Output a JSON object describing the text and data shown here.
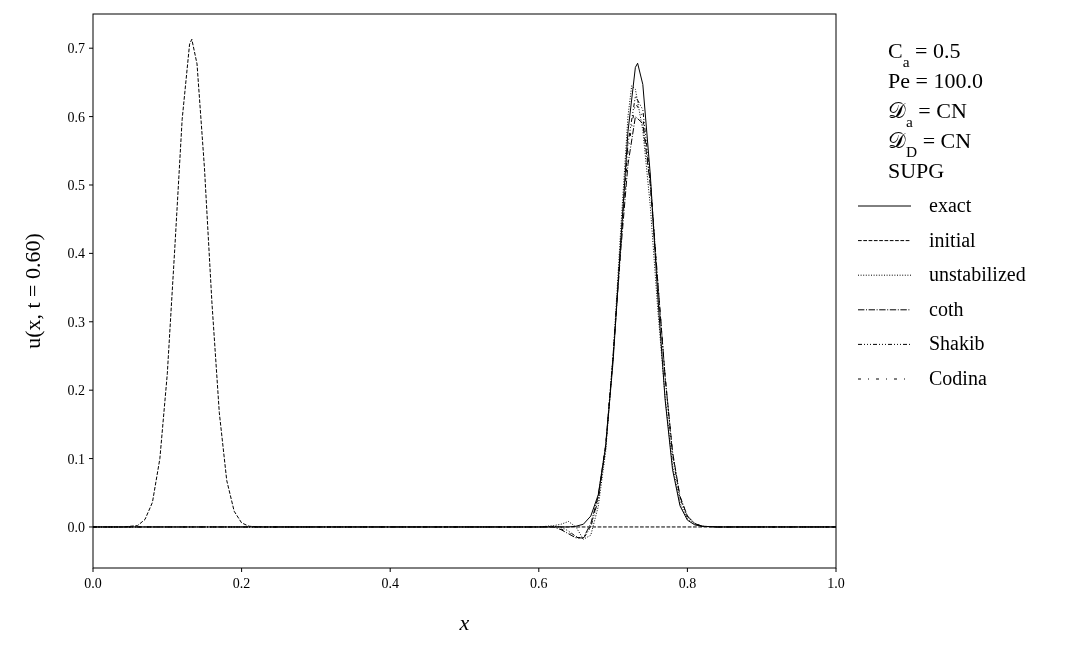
{
  "chart_data": {
    "type": "line",
    "xlabel": "x",
    "ylabel": "u(x, t = 0.60)",
    "xlim": [
      0,
      1
    ],
    "ylim": [
      -0.06,
      0.75
    ],
    "xticks": [
      {
        "value": 0,
        "label": "0.0"
      },
      {
        "value": 0.2,
        "label": "0.2"
      },
      {
        "value": 0.4,
        "label": "0.4"
      },
      {
        "value": 0.6,
        "label": "0.6"
      },
      {
        "value": 0.8,
        "label": "0.8"
      },
      {
        "value": 1,
        "label": "1.0"
      }
    ],
    "yticks": [
      {
        "value": 0,
        "label": "0.0"
      },
      {
        "value": 0.1,
        "label": "0.1"
      },
      {
        "value": 0.2,
        "label": "0.2"
      },
      {
        "value": 0.3,
        "label": "0.3"
      },
      {
        "value": 0.4,
        "label": "0.4"
      },
      {
        "value": 0.5,
        "label": "0.5"
      },
      {
        "value": 0.6,
        "label": "0.6"
      },
      {
        "value": 0.7,
        "label": "0.7"
      }
    ],
    "grid": false,
    "legend": "right",
    "marker": "none",
    "annotations": [
      "C$_{a}$ = 0.5",
      "Pe = 100.0",
      "𝒟$_{a}$ = CN",
      "𝒟$_{D}$ = CN",
      "SUPG"
    ],
    "series": [
      {
        "name": "exact",
        "color": "#000000",
        "line_style": "solid",
        "x": [
          0,
          0.6,
          0.64,
          0.65,
          0.66,
          0.67,
          0.68,
          0.69,
          0.7,
          0.71,
          0.72,
          0.73,
          0.733,
          0.74,
          0.75,
          0.76,
          0.77,
          0.78,
          0.79,
          0.8,
          0.81,
          0.82,
          0.84,
          1
        ],
        "values": [
          0,
          0,
          0,
          0.001,
          0.004,
          0.016,
          0.047,
          0.118,
          0.242,
          0.411,
          0.578,
          0.672,
          0.678,
          0.647,
          0.516,
          0.34,
          0.186,
          0.084,
          0.031,
          0.01,
          0.003,
          0.001,
          0,
          0
        ]
      },
      {
        "name": "initial",
        "color": "#000000",
        "line_style": "dashed",
        "x": [
          0,
          0.04,
          0.06,
          0.07,
          0.08,
          0.09,
          0.1,
          0.11,
          0.12,
          0.13,
          0.133,
          0.14,
          0.15,
          0.16,
          0.17,
          0.18,
          0.19,
          0.2,
          0.21,
          0.23,
          1
        ],
        "values": [
          0,
          0,
          0.002,
          0.011,
          0.036,
          0.1,
          0.224,
          0.406,
          0.596,
          0.706,
          0.713,
          0.677,
          0.525,
          0.329,
          0.167,
          0.068,
          0.023,
          0.006,
          0.001,
          0,
          0
        ]
      },
      {
        "name": "unstabilized",
        "color": "#000000",
        "line_style": "dotted",
        "x": [
          0,
          0.6,
          0.62,
          0.63,
          0.64,
          0.65,
          0.66,
          0.67,
          0.68,
          0.69,
          0.7,
          0.71,
          0.72,
          0.725,
          0.73,
          0.74,
          0.75,
          0.76,
          0.77,
          0.78,
          0.79,
          0.8,
          0.81,
          0.82,
          0.84,
          1
        ],
        "values": [
          0,
          0,
          0.002,
          0.004,
          0.008,
          0,
          -0.018,
          -0.012,
          0.03,
          0.11,
          0.25,
          0.43,
          0.6,
          0.645,
          0.64,
          0.58,
          0.47,
          0.32,
          0.19,
          0.09,
          0.035,
          0.012,
          0.004,
          0.001,
          0,
          0
        ]
      },
      {
        "name": "coth",
        "color": "#000000",
        "line_style": "dashdot",
        "x": [
          0,
          0.6,
          0.62,
          0.63,
          0.64,
          0.65,
          0.66,
          0.67,
          0.68,
          0.69,
          0.7,
          0.71,
          0.72,
          0.73,
          0.74,
          0.75,
          0.76,
          0.77,
          0.78,
          0.79,
          0.8,
          0.81,
          0.82,
          0.84,
          1
        ],
        "values": [
          0,
          0,
          0,
          -0.004,
          -0.01,
          -0.016,
          -0.016,
          0.005,
          0.045,
          0.12,
          0.25,
          0.4,
          0.53,
          0.6,
          0.59,
          0.5,
          0.36,
          0.22,
          0.11,
          0.045,
          0.016,
          0.005,
          0.001,
          0,
          0
        ]
      },
      {
        "name": "Shakib",
        "color": "#000000",
        "line_style": "dashdotdot",
        "x": [
          0,
          0.6,
          0.62,
          0.63,
          0.64,
          0.65,
          0.66,
          0.67,
          0.68,
          0.69,
          0.7,
          0.71,
          0.72,
          0.73,
          0.74,
          0.75,
          0.76,
          0.77,
          0.78,
          0.79,
          0.8,
          0.81,
          0.82,
          0.84,
          1
        ],
        "values": [
          0,
          0,
          0.001,
          0,
          -0.006,
          -0.014,
          -0.017,
          0.0,
          0.04,
          0.115,
          0.25,
          0.41,
          0.56,
          0.63,
          0.61,
          0.51,
          0.36,
          0.22,
          0.105,
          0.042,
          0.015,
          0.005,
          0.001,
          0,
          0
        ]
      },
      {
        "name": "Codina",
        "color": "#000000",
        "line_style": "loosedashdot",
        "x": [
          0,
          0.6,
          0.62,
          0.63,
          0.64,
          0.65,
          0.66,
          0.67,
          0.68,
          0.69,
          0.7,
          0.71,
          0.72,
          0.73,
          0.74,
          0.75,
          0.76,
          0.77,
          0.78,
          0.79,
          0.8,
          0.81,
          0.82,
          0.84,
          1
        ],
        "values": [
          0,
          0,
          0,
          -0.003,
          -0.008,
          -0.015,
          -0.017,
          0.002,
          0.042,
          0.118,
          0.25,
          0.405,
          0.55,
          0.62,
          0.6,
          0.505,
          0.36,
          0.22,
          0.108,
          0.044,
          0.016,
          0.005,
          0.001,
          0,
          0
        ]
      }
    ]
  }
}
